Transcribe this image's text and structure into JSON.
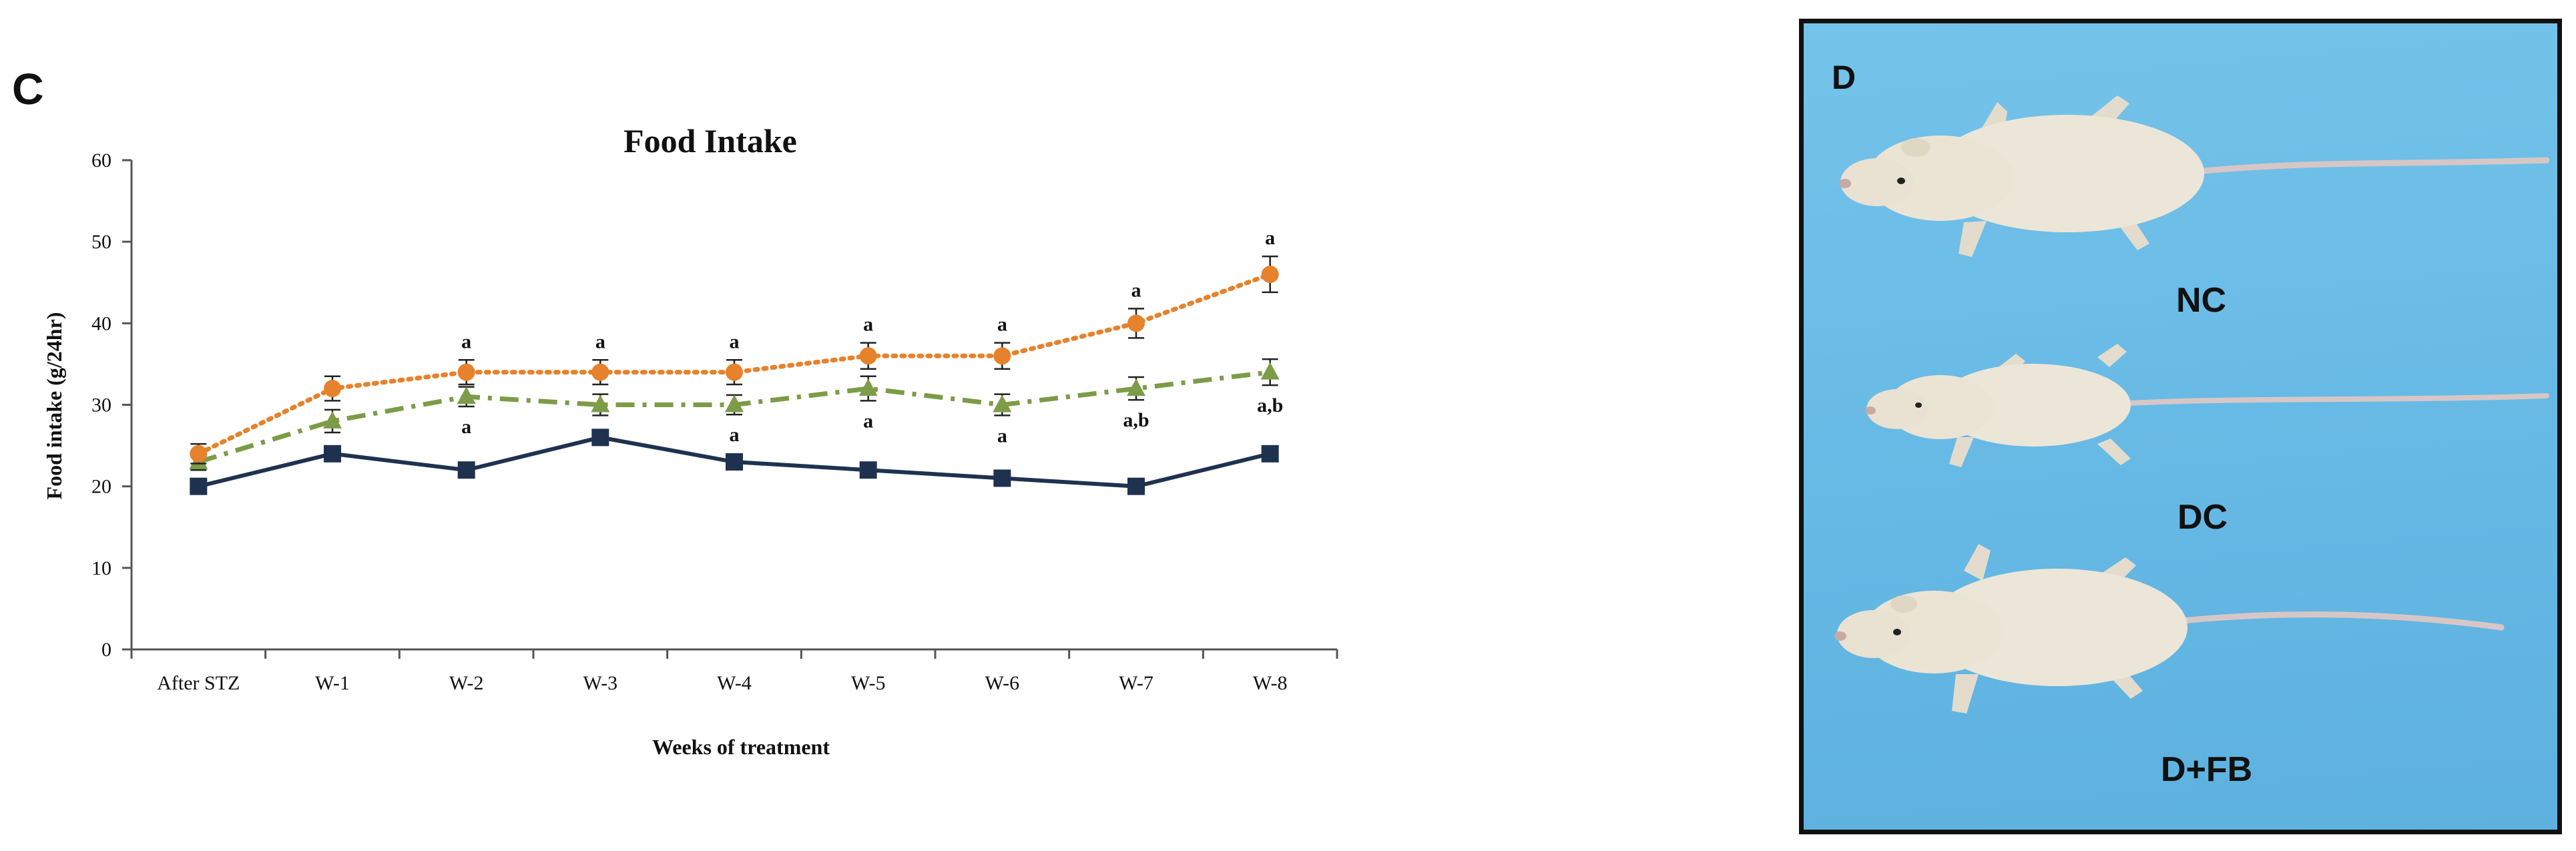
{
  "panel_c_letter": "C",
  "panel_d_letter": "D",
  "colors": {
    "orange": "#e6822c",
    "green": "#7c9c47",
    "navy": "#1e3250",
    "photo_bg": "#6abce6",
    "rat_fur": "#ece6d8",
    "rat_tail": "#d8c9c7"
  },
  "chart_data": {
    "type": "line",
    "title": "Food Intake",
    "xlabel": "Weeks of treatment",
    "ylabel": "Food  intake (g/24hr)",
    "ylim": [
      0,
      60
    ],
    "yticks": [
      "0",
      "10",
      "20",
      "30",
      "40",
      "50",
      "60"
    ],
    "categories": [
      "After STZ",
      "W-1",
      "W-2",
      "W-3",
      "W-4",
      "W-5",
      "W-6",
      "W-7",
      "W-8"
    ],
    "legend": "none",
    "grid": false,
    "series": [
      {
        "style": "dotted",
        "marker": "circle",
        "color": "#e6822c",
        "values": [
          24,
          32,
          34,
          34,
          34,
          36,
          36,
          40,
          46
        ],
        "errors": [
          1.2,
          1.5,
          1.5,
          1.5,
          1.5,
          1.6,
          1.6,
          1.8,
          2.2
        ],
        "annotations": [
          "",
          "",
          "a",
          "a",
          "a",
          "a",
          "a",
          "a",
          "a"
        ]
      },
      {
        "style": "dash-dot",
        "marker": "triangle",
        "color": "#7c9c47",
        "values": [
          23,
          28,
          31,
          30,
          30,
          32,
          30,
          32,
          34
        ],
        "errors": [
          1.0,
          1.4,
          1.2,
          1.3,
          1.2,
          1.5,
          1.3,
          1.4,
          1.6
        ],
        "annotations": [
          "",
          "",
          "a",
          "",
          "a",
          "a",
          "a",
          "a,b",
          "a,b"
        ]
      },
      {
        "style": "solid",
        "marker": "square",
        "color": "#1e3250",
        "values": [
          20,
          24,
          22,
          26,
          23,
          22,
          21,
          20,
          24
        ],
        "errors": [
          0,
          0,
          0,
          0,
          0,
          0,
          0,
          0,
          0
        ],
        "annotations": [
          "",
          "",
          "",
          "",
          "",
          "",
          "",
          "",
          ""
        ]
      }
    ]
  },
  "photo": {
    "labels": [
      "NC",
      "DC",
      "D+FB"
    ]
  }
}
